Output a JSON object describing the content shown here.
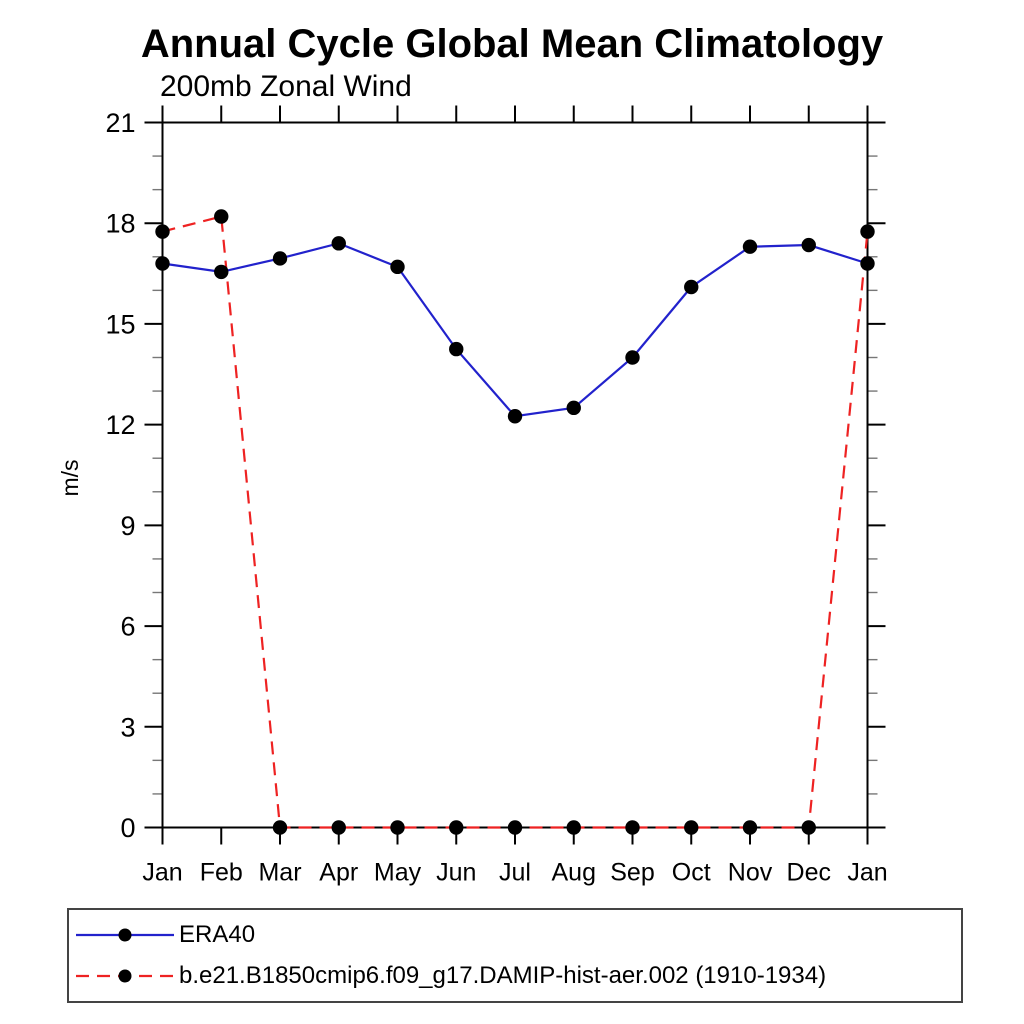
{
  "chart_data": {
    "type": "line",
    "title": "Annual Cycle Global Mean Climatology",
    "subtitle": "200mb Zonal Wind",
    "ylabel": "m/s",
    "xlabel": "",
    "categories": [
      "Jan",
      "Feb",
      "Mar",
      "Apr",
      "May",
      "Jun",
      "Jul",
      "Aug",
      "Sep",
      "Oct",
      "Nov",
      "Dec",
      "Jan"
    ],
    "ylim": [
      0,
      21
    ],
    "ytick_major": 3,
    "ytick_minor": 1,
    "ytick_labels": [
      "0",
      "3",
      "6",
      "9",
      "12",
      "15",
      "18",
      "21"
    ],
    "grid": "off",
    "legend_position": "bottom-left-box",
    "marker": {
      "shape": "circle",
      "color": "#000000"
    },
    "series": [
      {
        "name": "ERA40",
        "color": "#2222cc",
        "style": "solid",
        "values": [
          16.8,
          16.55,
          16.95,
          17.4,
          16.7,
          14.25,
          12.25,
          12.5,
          14.0,
          16.1,
          17.3,
          17.35,
          16.8
        ]
      },
      {
        "name": "b.e21.B1850cmip6.f09_g17.DAMIP-hist-aer.002 (1910-1934)",
        "color": "#ee2222",
        "style": "dashed",
        "values": [
          17.75,
          18.2,
          0,
          0,
          0,
          0,
          0,
          0,
          0,
          0,
          0,
          0,
          17.75
        ]
      }
    ]
  }
}
